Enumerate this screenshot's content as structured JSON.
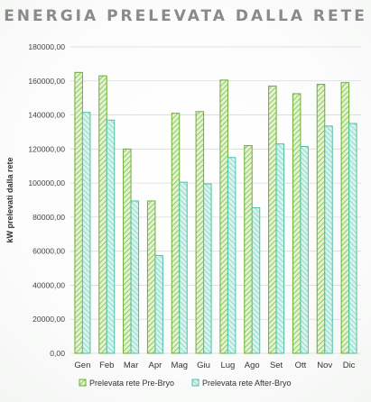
{
  "chart_data": {
    "type": "bar",
    "title": "ENERGIA PRELEVATA DALLA RETE",
    "xlabel": "",
    "ylabel": "kW prelevati dalla rete",
    "ylim": [
      0,
      180000
    ],
    "yticks": [
      0,
      20000,
      40000,
      60000,
      80000,
      100000,
      120000,
      140000,
      160000,
      180000
    ],
    "ytick_labels": [
      "0,00",
      "20000,00",
      "40000,00",
      "60000,00",
      "80000,00",
      "100000,00",
      "120000,00",
      "140000,00",
      "160000,00",
      "180000,00"
    ],
    "grid": true,
    "legend_position": "bottom",
    "categories": [
      "Gen",
      "Feb",
      "Mar",
      "Apr",
      "Mag",
      "Giu",
      "Lug",
      "Ago",
      "Set",
      "Ott",
      "Nov",
      "Dic"
    ],
    "series": [
      {
        "name": "Prelevata rete Pre-Bryo",
        "color": "#7bc043",
        "values": [
          165000,
          163000,
          120000,
          89500,
          141000,
          142000,
          160500,
          122000,
          157000,
          152500,
          158000,
          159000
        ]
      },
      {
        "name": "Prelevata rete After-Bryo",
        "color": "#4fc9b0",
        "values": [
          141500,
          137000,
          89500,
          57500,
          100500,
          99500,
          115000,
          85500,
          123000,
          121500,
          133500,
          135000
        ]
      }
    ]
  }
}
